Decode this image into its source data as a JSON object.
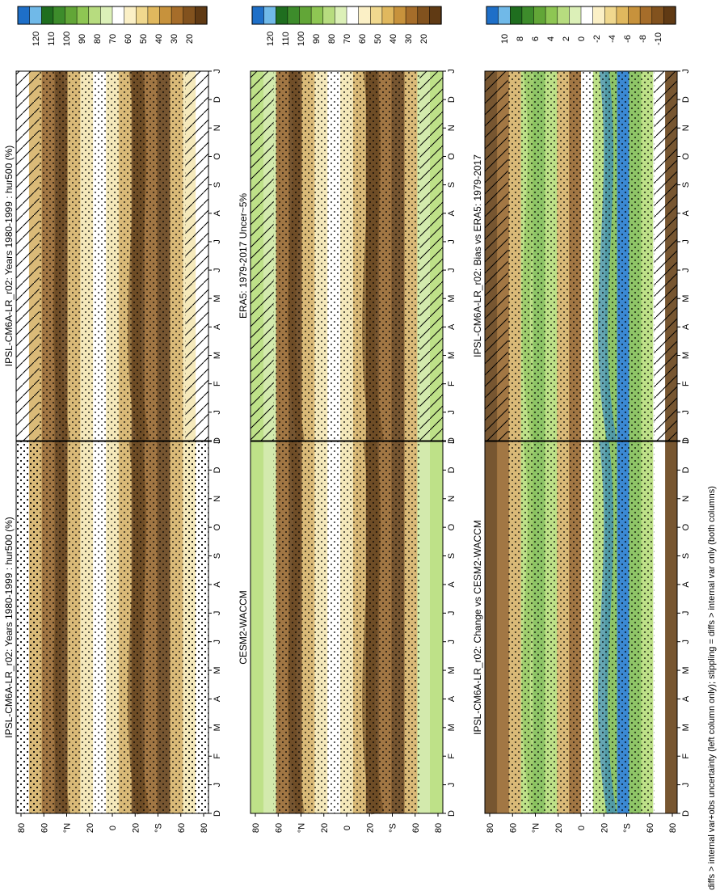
{
  "footer": "hatching = diffs > internal var+obs uncertainty (left column only); stippling = diffs > internal var only (both columns)",
  "months": [
    "D",
    "J",
    "F",
    "M",
    "A",
    "M",
    "J",
    "J",
    "A",
    "S",
    "O",
    "N",
    "D",
    "J"
  ],
  "lat_ticks": [
    "80",
    "60",
    "°N",
    "20",
    "0",
    "20",
    "°S",
    "60",
    "80"
  ],
  "abs_colorbar": {
    "labels": [
      "120",
      "110",
      "100",
      "90",
      "80",
      "70",
      "60",
      "50",
      "40",
      "30",
      "20"
    ],
    "colors": [
      "#1e6fc8",
      "#70b9e8",
      "#1f6e1f",
      "#3d8c2b",
      "#62a637",
      "#8ec653",
      "#b7dc7f",
      "#dcf0b8",
      "#ffffff",
      "#fbf0c6",
      "#f0d88e",
      "#e0b85e",
      "#c7923c",
      "#a66d2a",
      "#82521e",
      "#603a14"
    ]
  },
  "diff_colorbar": {
    "labels": [
      "10",
      "8",
      "6",
      "4",
      "2",
      "0",
      "-2",
      "-4",
      "-6",
      "-8",
      "-10"
    ],
    "colors": [
      "#1e6fc8",
      "#70b9e8",
      "#1f6e1f",
      "#3d8c2b",
      "#62a637",
      "#8ec653",
      "#b7dc7f",
      "#dcf0b8",
      "#ffffff",
      "#fbf0c6",
      "#f0d88e",
      "#e0b85e",
      "#c7923c",
      "#a66d2a",
      "#82521e",
      "#603a14"
    ]
  },
  "colors": {
    "dark_brown": "#6b4820",
    "mid_brown": "#9a6b34",
    "tan": "#d7b46d",
    "light_yellow": "#f4e7b5",
    "light_green": "#b9de7e",
    "green": "#86c05a",
    "blue": "#2a7fd0",
    "white": "#ffffff"
  },
  "chart_data": [
    {
      "type": "heatmap",
      "title": "IPSL-CM6A-LR_r02: Years 1980-1999 : hur500 (%)",
      "x": [
        "D",
        "J",
        "F",
        "M",
        "A",
        "M",
        "J",
        "J",
        "A",
        "S",
        "O",
        "N",
        "D",
        "J"
      ],
      "y_ticks": [
        "80",
        "60",
        "°N",
        "20",
        "0",
        "20",
        "°S",
        "60",
        "80"
      ],
      "colorbar": [
        "120",
        "110",
        "100",
        "90",
        "80",
        "70",
        "60",
        "50",
        "40",
        "30",
        "20"
      ],
      "overlay": "hatching+stippling"
    },
    {
      "type": "heatmap",
      "title": "IPSL-CM6A-LR_r02: Years 1980-1999 : hur500 (%)",
      "x": [
        "D",
        "J",
        "F",
        "M",
        "A",
        "M",
        "J",
        "J",
        "A",
        "S",
        "O",
        "N",
        "D",
        "J"
      ],
      "y_ticks": [
        "80",
        "60",
        "°N",
        "20",
        "0",
        "20",
        "°S",
        "60",
        "80"
      ],
      "colorbar": [
        "120",
        "110",
        "100",
        "90",
        "80",
        "70",
        "60",
        "50",
        "40",
        "30",
        "20"
      ],
      "overlay": "stippling"
    },
    {
      "type": "heatmap",
      "title": "ERA5: 1979-2017 Uncer~5%",
      "x": [
        "D",
        "J",
        "F",
        "M",
        "A",
        "M",
        "J",
        "J",
        "A",
        "S",
        "O",
        "N",
        "D",
        "J"
      ],
      "y_ticks": [
        "80",
        "60",
        "°N",
        "20",
        "0",
        "20",
        "°S",
        "60",
        "80"
      ],
      "colorbar": [
        "120",
        "110",
        "100",
        "90",
        "80",
        "70",
        "60",
        "50",
        "40",
        "30",
        "20"
      ],
      "overlay": "hatching+stippling"
    },
    {
      "type": "heatmap",
      "title": "CESM2-WACCM",
      "x": [
        "D",
        "J",
        "F",
        "M",
        "A",
        "M",
        "J",
        "J",
        "A",
        "S",
        "O",
        "N",
        "D",
        "J"
      ],
      "y_ticks": [
        "80",
        "60",
        "°N",
        "20",
        "0",
        "20",
        "°S",
        "60",
        "80"
      ],
      "colorbar": [
        "120",
        "110",
        "100",
        "90",
        "80",
        "70",
        "60",
        "50",
        "40",
        "30",
        "20"
      ],
      "overlay": "stippling"
    },
    {
      "type": "heatmap",
      "title": "IPSL-CM6A-LR_r02: Bias vs ERA5: 1979-2017",
      "x": [
        "D",
        "J",
        "F",
        "M",
        "A",
        "M",
        "J",
        "J",
        "A",
        "S",
        "O",
        "N",
        "D",
        "J"
      ],
      "y_ticks": [
        "80",
        "60",
        "°N",
        "20",
        "0",
        "20",
        "°S",
        "60",
        "80"
      ],
      "colorbar": [
        "10",
        "8",
        "6",
        "4",
        "2",
        "0",
        "-2",
        "-4",
        "-6",
        "-8",
        "-10"
      ],
      "overlay": "hatching+stippling"
    },
    {
      "type": "heatmap",
      "title": "IPSL-CM6A-LR_r02: Change vs CESM2-WACCM",
      "x": [
        "D",
        "J",
        "F",
        "M",
        "A",
        "M",
        "J",
        "J",
        "A",
        "S",
        "O",
        "N",
        "D",
        "J"
      ],
      "y_ticks": [
        "80",
        "60",
        "°N",
        "20",
        "0",
        "20",
        "°S",
        "60",
        "80"
      ],
      "colorbar": [
        "10",
        "8",
        "6",
        "4",
        "2",
        "0",
        "-2",
        "-4",
        "-6",
        "-8",
        "-10"
      ],
      "overlay": "stippling"
    }
  ]
}
